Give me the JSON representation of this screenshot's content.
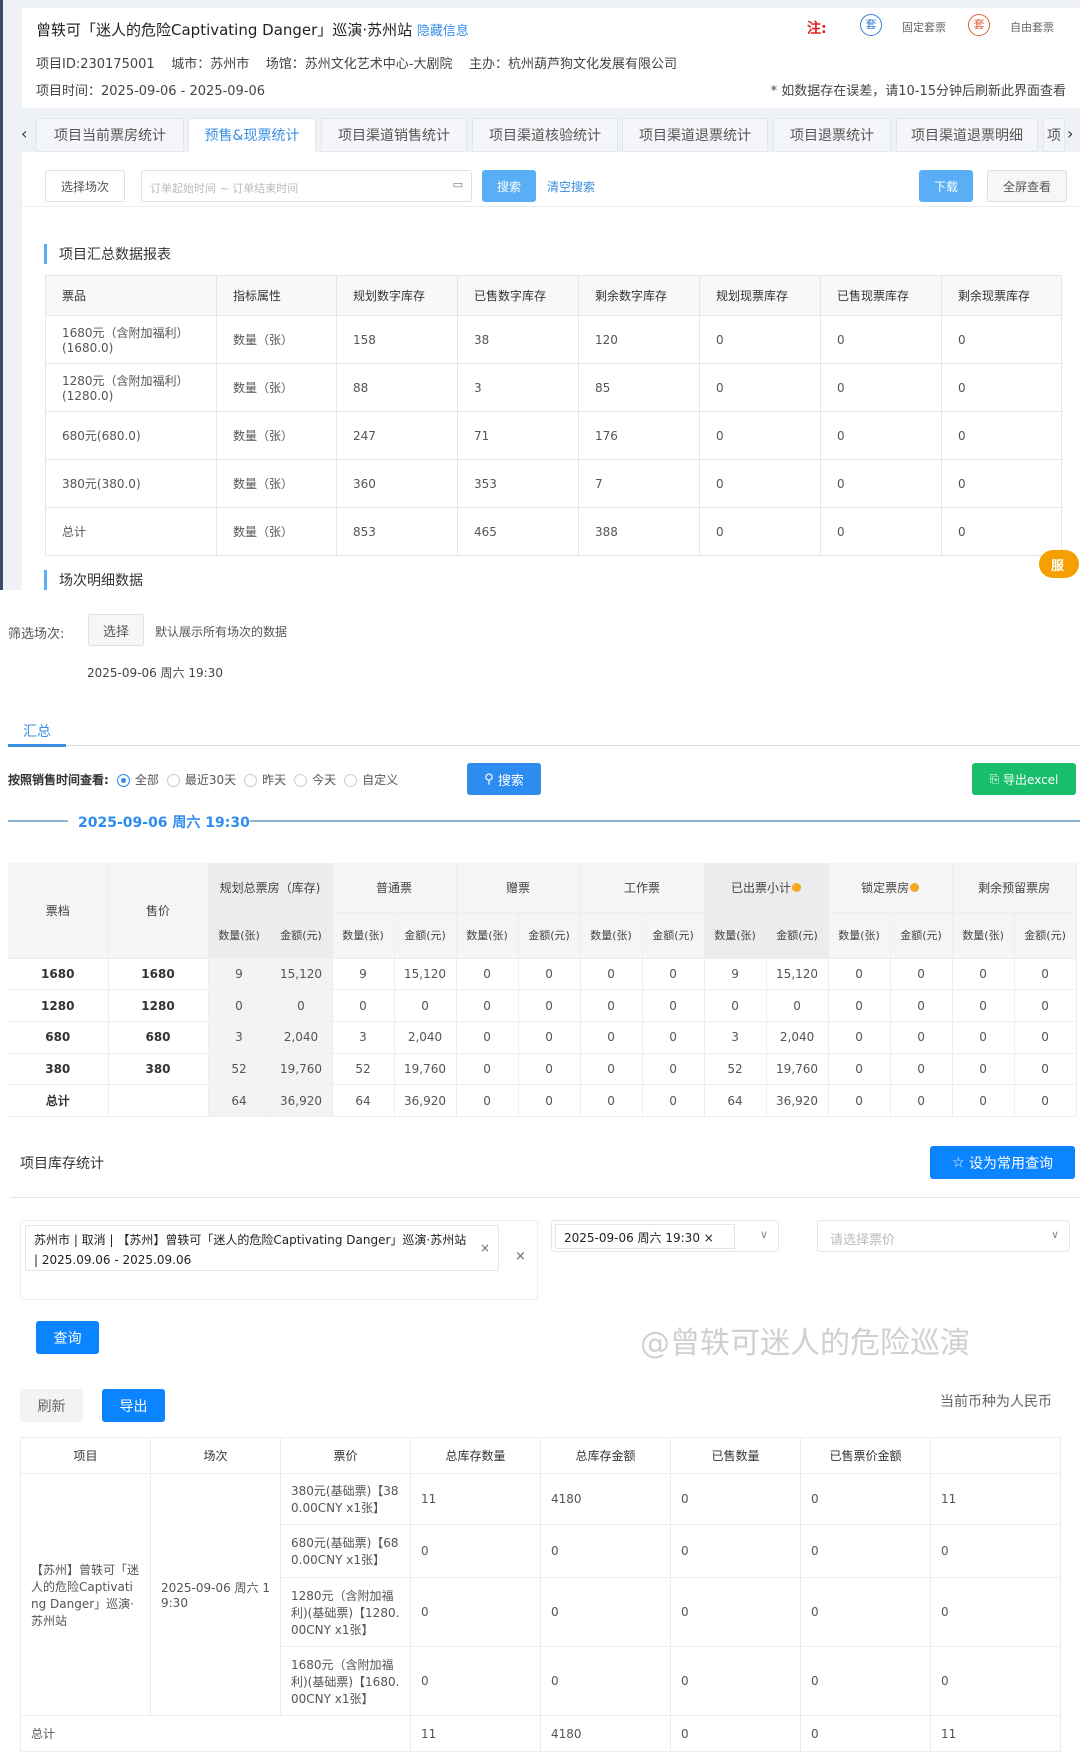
{
  "header": {
    "title": "曾轶可「迷人的危险Captivating Danger」巡演·苏州站",
    "hide_link": "隐藏信息",
    "note_label": "注:",
    "legend_fixed_icon": "套",
    "legend_fixed": "固定套票",
    "legend_free_icon": "套",
    "legend_free": "自由套票",
    "project_id": "项目ID:230175001",
    "city": "城市：苏州市",
    "venue": "场馆：苏州文化艺术中心-大剧院",
    "organizer": "主办：杭州葫芦狗文化发展有限公司",
    "time": "项目时间：2025-09-06 - 2025-09-06",
    "warning": "* 如数据存在误差，请10-15分钟后刷新此界面查看"
  },
  "tabs": [
    "项目当前票房统计",
    "预售&现票统计",
    "项目渠道销售统计",
    "项目渠道核验统计",
    "项目渠道退票统计",
    "项目退票统计",
    "项目渠道退票明细",
    "项"
  ],
  "active_tab": 1,
  "toolbar": {
    "select_session": "选择场次",
    "date_placeholder": "订单起始时间 ~ 订单结束时间",
    "search": "搜索",
    "clear": "清空搜索",
    "download": "下载",
    "fullscreen": "全屏查看"
  },
  "summary": {
    "title": "项目汇总数据报表",
    "headers": [
      "票品",
      "指标属性",
      "规划数字库存",
      "已售数字库存",
      "剩余数字库存",
      "规划现票库存",
      "已售现票库存",
      "剩余现票库存"
    ],
    "rows": [
      [
        "1680元（含附加福利）(1680.0)",
        "数量（张）",
        "158",
        "38",
        "120",
        "0",
        "0",
        "0"
      ],
      [
        "1280元（含附加福利）(1280.0)",
        "数量（张）",
        "88",
        "3",
        "85",
        "0",
        "0",
        "0"
      ],
      [
        "680元(680.0)",
        "数量（张）",
        "247",
        "71",
        "176",
        "0",
        "0",
        "0"
      ],
      [
        "380元(380.0)",
        "数量（张）",
        "360",
        "353",
        "7",
        "0",
        "0",
        "0"
      ],
      [
        "总计",
        "数量（张）",
        "853",
        "465",
        "388",
        "0",
        "0",
        "0"
      ]
    ]
  },
  "next_section_title": "场次明细数据",
  "float_badge": "服",
  "session": {
    "filter_label": "筛选场次:",
    "choose": "选择",
    "hint": "默认展示所有场次的数据",
    "date": "2025-09-06 周六 19:30",
    "tab": "汇总",
    "time_label": "按照销售时间查看:",
    "radios": [
      "全部",
      "最近30天",
      "昨天",
      "今天",
      "自定义"
    ],
    "radio_selected": 0,
    "search": "搜索",
    "export": "导出excel",
    "divider_date": "2025-09-06 周六 19:30"
  },
  "detail": {
    "col1": "票档",
    "col2": "售价",
    "groups": [
      "规划总票房（库存)",
      "普通票",
      "赠票",
      "工作票",
      "已出票小计",
      "锁定票房",
      "剩余预留票房"
    ],
    "sub": [
      "数量(张)",
      "金额(元)"
    ],
    "rows": [
      [
        "1680",
        "1680",
        "9",
        "15,120",
        "9",
        "15,120",
        "0",
        "0",
        "0",
        "0",
        "9",
        "15,120",
        "0",
        "0",
        "0",
        "0"
      ],
      [
        "1280",
        "1280",
        "0",
        "0",
        "0",
        "0",
        "0",
        "0",
        "0",
        "0",
        "0",
        "0",
        "0",
        "0",
        "0",
        "0"
      ],
      [
        "680",
        "680",
        "3",
        "2,040",
        "3",
        "2,040",
        "0",
        "0",
        "0",
        "0",
        "3",
        "2,040",
        "0",
        "0",
        "0",
        "0"
      ],
      [
        "380",
        "380",
        "52",
        "19,760",
        "52",
        "19,760",
        "0",
        "0",
        "0",
        "0",
        "52",
        "19,760",
        "0",
        "0",
        "0",
        "0"
      ],
      [
        "总计",
        "",
        "64",
        "36,920",
        "64",
        "36,920",
        "0",
        "0",
        "0",
        "0",
        "64",
        "36,920",
        "0",
        "0",
        "0",
        "0"
      ]
    ]
  },
  "inventory": {
    "title": "项目库存统计",
    "favorite": "设为常用查询",
    "project_tag": "苏州市 | 取消 | 【苏州】曾轶可「迷人的危险Captivating Danger」巡演·苏州站 | 2025.09.06 - 2025.09.06",
    "session_tag": "2025-09-06 周六 19:30",
    "price_placeholder": "请选择票价",
    "query": "查询",
    "refresh": "刷新",
    "export": "导出",
    "currency": "当前币种为人民币",
    "headers": [
      "项目",
      "场次",
      "票价",
      "总库存数量",
      "总库存金额",
      "已售数量",
      "已售票价金额",
      ""
    ],
    "project": "【苏州】曾轶可「迷人的危险Captivating Danger」巡演·苏州站",
    "session": "2025-09-06 周六 19:30",
    "rows": [
      [
        "380元(基础票)【380.00CNY x1张】",
        "11",
        "4180",
        "0",
        "0",
        "11"
      ],
      [
        "680元(基础票)【680.00CNY x1张】",
        "0",
        "0",
        "0",
        "0",
        "0"
      ],
      [
        "1280元（含附加福利)(基础票)【1280.00CNY x1张】",
        "0",
        "0",
        "0",
        "0",
        "0"
      ],
      [
        "1680元（含附加福利)(基础票)【1680.00CNY x1张】",
        "0",
        "0",
        "0",
        "0",
        "0"
      ]
    ],
    "total": [
      "总计",
      "11",
      "4180",
      "0",
      "0",
      "11"
    ]
  },
  "watermark": "@曾轶可迷人的危险巡演"
}
